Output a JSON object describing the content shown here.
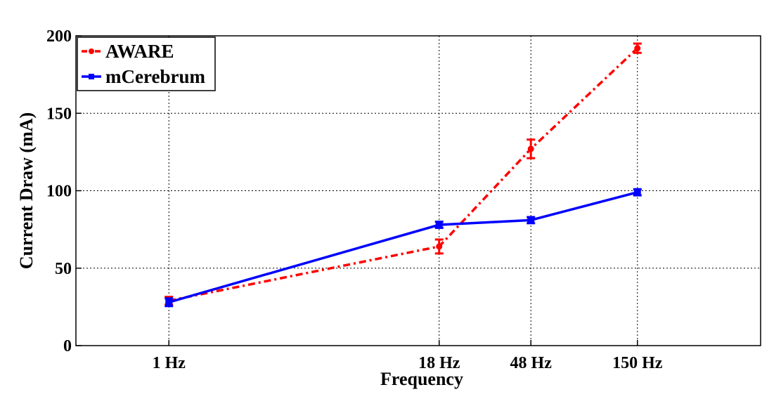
{
  "chart_data": {
    "type": "line",
    "xlabel": "Frequency",
    "ylabel": "Current Draw (mA)",
    "x_scale": "log",
    "x": [
      1,
      18,
      48,
      150
    ],
    "categories": [
      "1 Hz",
      "18 Hz",
      "48 Hz",
      "150 Hz"
    ],
    "xlim": [
      0.37,
      560
    ],
    "ylim": [
      0,
      200
    ],
    "yticks": [
      0,
      50,
      100,
      150,
      200
    ],
    "grid": true,
    "legend_position": "top-left",
    "series": [
      {
        "name": "AWARE",
        "color": "#ff0000",
        "line_style": "dash-dot",
        "marker": "circle",
        "values": [
          29,
          64,
          127,
          192
        ],
        "error": [
          2.5,
          4.5,
          6,
          3
        ]
      },
      {
        "name": "mCerebrum",
        "color": "#0000ff",
        "line_style": "solid",
        "marker": "square",
        "values": [
          28,
          78,
          81,
          99
        ],
        "error": [
          2.5,
          2,
          2,
          2
        ]
      }
    ]
  }
}
